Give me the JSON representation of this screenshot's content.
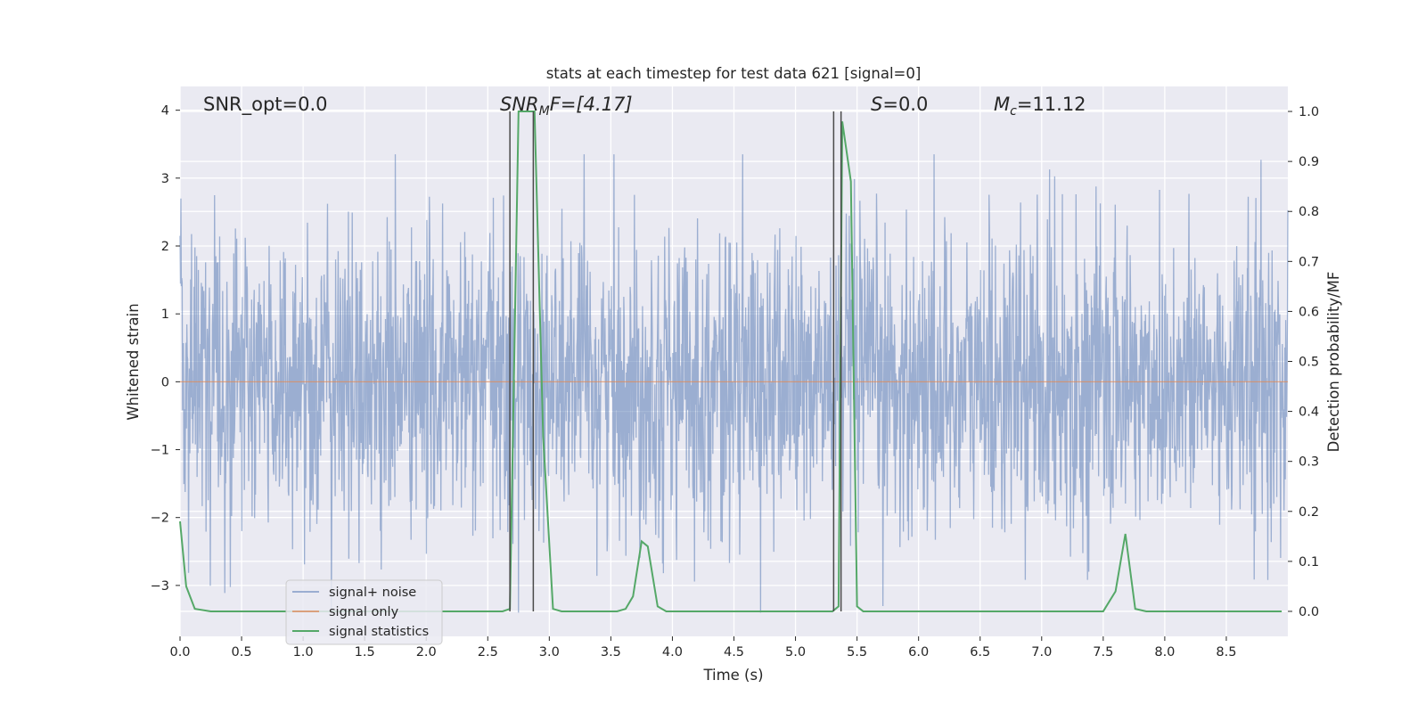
{
  "chart_data": {
    "type": "line",
    "title": "stats at each timestep for test data 621 [signal=0]",
    "xlabel": "Time (s)",
    "ylabel_left": "Whitened strain",
    "ylabel_right": "Detection probability/MF",
    "xlim": [
      0.0,
      9.0
    ],
    "ylim_left": [
      -3.75,
      4.35
    ],
    "ylim_right": [
      -0.05,
      1.05
    ],
    "x_ticks": [
      0.0,
      0.5,
      1.0,
      1.5,
      2.0,
      2.5,
      3.0,
      3.5,
      4.0,
      4.5,
      5.0,
      5.5,
      6.0,
      6.5,
      7.0,
      7.5,
      8.0,
      8.5
    ],
    "x_tick_labels": [
      "0.0",
      "0.5",
      "1.0",
      "1.5",
      "2.0",
      "2.5",
      "3.0",
      "3.5",
      "4.0",
      "4.5",
      "5.0",
      "5.5",
      "6.0",
      "6.5",
      "7.0",
      "7.5",
      "8.0",
      "8.5"
    ],
    "y_left_ticks": [
      4,
      3,
      2,
      1,
      0,
      -1,
      -2,
      -3
    ],
    "y_left_tick_labels": [
      "4",
      "3",
      "2",
      "1",
      "0",
      "−1",
      "−2",
      "−3"
    ],
    "y_right_ticks": [
      1.0,
      0.9,
      0.8,
      0.7,
      0.6,
      0.5,
      0.4,
      0.3,
      0.2,
      0.1,
      0.0
    ],
    "y_right_tick_labels": [
      "1.0",
      "0.9",
      "0.8",
      "0.7",
      "0.6",
      "0.5",
      "0.4",
      "0.3",
      "0.2",
      "0.1",
      "0.0"
    ],
    "grid": true,
    "legend_position": "lower-left",
    "colors": {
      "background": "#eaeaf2",
      "grid": "#ffffff",
      "signal_noise": "#4c72b0",
      "signal_only": "#dd8452",
      "signal_statistics": "#55a868",
      "vertical_markers": "#4a4a4a"
    },
    "annotations": {
      "snr_opt": "SNR_opt=0.0",
      "snr_mf_prefix": "SNR",
      "snr_mf_sub": "M",
      "snr_mf_suffix": "F=[4.17]",
      "s_sym": "S",
      "s_val": "=0.0",
      "mc_sym": "M",
      "mc_sub": "c",
      "mc_val": "=11.12"
    },
    "series": [
      {
        "name": "signal+ noise",
        "kind": "noise",
        "amplitude_std": 1.1,
        "axis": "left"
      },
      {
        "name": "signal only",
        "kind": "line",
        "axis": "left",
        "x": [
          0.0,
          9.0
        ],
        "y": [
          0.0,
          0.0
        ]
      },
      {
        "name": "signal statistics",
        "kind": "line",
        "axis": "right",
        "x": [
          0.0,
          0.05,
          0.12,
          0.25,
          0.5,
          1.0,
          1.5,
          2.0,
          2.5,
          2.62,
          2.68,
          2.75,
          2.83,
          2.88,
          2.95,
          3.03,
          3.1,
          3.3,
          3.55,
          3.62,
          3.68,
          3.75,
          3.8,
          3.88,
          3.95,
          4.2,
          4.6,
          5.0,
          5.3,
          5.35,
          5.38,
          5.45,
          5.5,
          5.55,
          5.62,
          6.0,
          6.5,
          7.0,
          7.5,
          7.6,
          7.68,
          7.76,
          7.85,
          8.05,
          8.2,
          8.6,
          8.95
        ],
        "y": [
          0.18,
          0.05,
          0.005,
          0.0,
          0.0,
          0.0,
          0.0,
          0.0,
          0.0,
          0.0,
          0.005,
          1.0,
          1.0,
          1.0,
          0.35,
          0.005,
          0.0,
          0.0,
          0.0,
          0.005,
          0.03,
          0.14,
          0.13,
          0.01,
          0.0,
          0.0,
          0.0,
          0.0,
          0.0,
          0.01,
          0.98,
          0.86,
          0.01,
          0.0,
          0.0,
          0.0,
          0.0,
          0.0,
          0.0,
          0.04,
          0.155,
          0.005,
          0.0,
          0.0,
          0.0,
          0.0,
          0.0
        ]
      }
    ],
    "vertical_markers_x": [
      2.68,
      2.87,
      5.31,
      5.37
    ]
  }
}
